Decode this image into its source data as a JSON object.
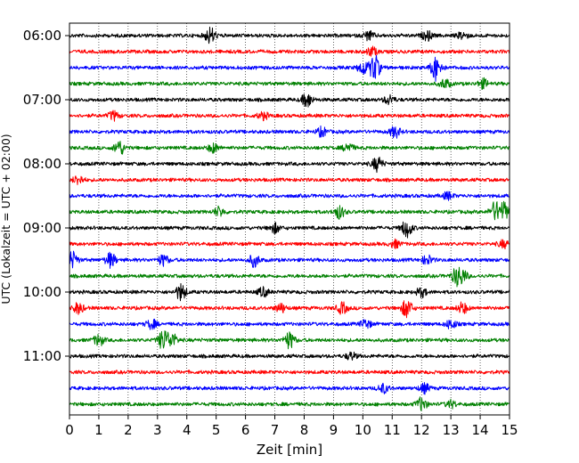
{
  "chart_data": {
    "type": "line",
    "title": "",
    "xlabel": "Zeit  [min]",
    "ylabel": "UTC (Lokalzeit = UTC + 02:00)",
    "xlim": [
      0,
      15
    ],
    "x_ticks": [
      "0",
      "1",
      "2",
      "3",
      "4",
      "5",
      "6",
      "7",
      "8",
      "9",
      "10",
      "11",
      "12",
      "13",
      "14",
      "15"
    ],
    "y_ticks": [
      "06:00",
      "07:00",
      "08:00",
      "09:00",
      "10:00",
      "11:00"
    ],
    "grid": "vertical dotted at each minute",
    "legend": "none",
    "trace_colors": [
      "#000000",
      "#ff0000",
      "#0000ff",
      "#008000"
    ],
    "rows": [
      {
        "time": "06:00",
        "color": "#000000",
        "events": [
          [
            4.8,
            9
          ],
          [
            10.2,
            5
          ],
          [
            12.2,
            5
          ],
          [
            13.4,
            4
          ]
        ]
      },
      {
        "time": "06:15",
        "color": "#ff0000",
        "events": [
          [
            10.3,
            5
          ]
        ]
      },
      {
        "time": "06:30",
        "color": "#0000ff",
        "events": [
          [
            10.0,
            7
          ],
          [
            10.4,
            14
          ],
          [
            12.5,
            14
          ]
        ]
      },
      {
        "time": "06:45",
        "color": "#008000",
        "events": [
          [
            12.8,
            5
          ],
          [
            14.1,
            5
          ]
        ]
      },
      {
        "time": "07:00",
        "color": "#000000",
        "events": [
          [
            8.1,
            8
          ],
          [
            10.9,
            5
          ]
        ]
      },
      {
        "time": "07:15",
        "color": "#ff0000",
        "events": [
          [
            1.5,
            5
          ],
          [
            6.6,
            4
          ]
        ]
      },
      {
        "time": "07:30",
        "color": "#0000ff",
        "events": [
          [
            8.6,
            5
          ],
          [
            11.1,
            6
          ]
        ]
      },
      {
        "time": "07:45",
        "color": "#008000",
        "events": [
          [
            1.7,
            8
          ],
          [
            4.9,
            5
          ],
          [
            9.5,
            5
          ]
        ]
      },
      {
        "time": "08:00",
        "color": "#000000",
        "events": [
          [
            10.5,
            8
          ]
        ]
      },
      {
        "time": "08:15",
        "color": "#ff0000",
        "events": [
          [
            0.3,
            5
          ]
        ]
      },
      {
        "time": "08:30",
        "color": "#0000ff",
        "events": [
          [
            12.9,
            4
          ]
        ]
      },
      {
        "time": "08:45",
        "color": "#008000",
        "events": [
          [
            5.1,
            5
          ],
          [
            9.2,
            7
          ],
          [
            14.5,
            10
          ],
          [
            14.8,
            10
          ]
        ]
      },
      {
        "time": "09:00",
        "color": "#000000",
        "events": [
          [
            7.0,
            5
          ],
          [
            11.5,
            10
          ]
        ]
      },
      {
        "time": "09:15",
        "color": "#ff0000",
        "events": [
          [
            11.1,
            4
          ],
          [
            14.8,
            4
          ]
        ]
      },
      {
        "time": "09:30",
        "color": "#0000ff",
        "events": [
          [
            0.1,
            9
          ],
          [
            1.4,
            8
          ],
          [
            3.2,
            6
          ],
          [
            6.3,
            7
          ],
          [
            12.2,
            5
          ]
        ]
      },
      {
        "time": "09:45",
        "color": "#008000",
        "events": [
          [
            13.2,
            9
          ],
          [
            13.4,
            6
          ]
        ]
      },
      {
        "time": "10:00",
        "color": "#000000",
        "events": [
          [
            3.8,
            9
          ],
          [
            6.6,
            5
          ],
          [
            12.0,
            5
          ]
        ]
      },
      {
        "time": "10:15",
        "color": "#ff0000",
        "events": [
          [
            0.3,
            6
          ],
          [
            7.2,
            5
          ],
          [
            9.3,
            6
          ],
          [
            11.5,
            10
          ],
          [
            13.4,
            6
          ]
        ]
      },
      {
        "time": "10:30",
        "color": "#0000ff",
        "events": [
          [
            2.8,
            5
          ],
          [
            10.1,
            5
          ],
          [
            13.0,
            5
          ]
        ]
      },
      {
        "time": "10:45",
        "color": "#008000",
        "events": [
          [
            1.0,
            6
          ],
          [
            3.2,
            11
          ],
          [
            3.5,
            7
          ],
          [
            7.5,
            9
          ]
        ]
      },
      {
        "time": "11:00",
        "color": "#000000",
        "events": [
          [
            9.6,
            4
          ]
        ]
      },
      {
        "time": "11:15",
        "color": "#ff0000",
        "events": []
      },
      {
        "time": "11:30",
        "color": "#0000ff",
        "events": [
          [
            10.7,
            5
          ],
          [
            12.1,
            5
          ]
        ]
      },
      {
        "time": "11:45",
        "color": "#008000",
        "events": [
          [
            12.0,
            7
          ],
          [
            13.0,
            4
          ]
        ]
      }
    ]
  }
}
